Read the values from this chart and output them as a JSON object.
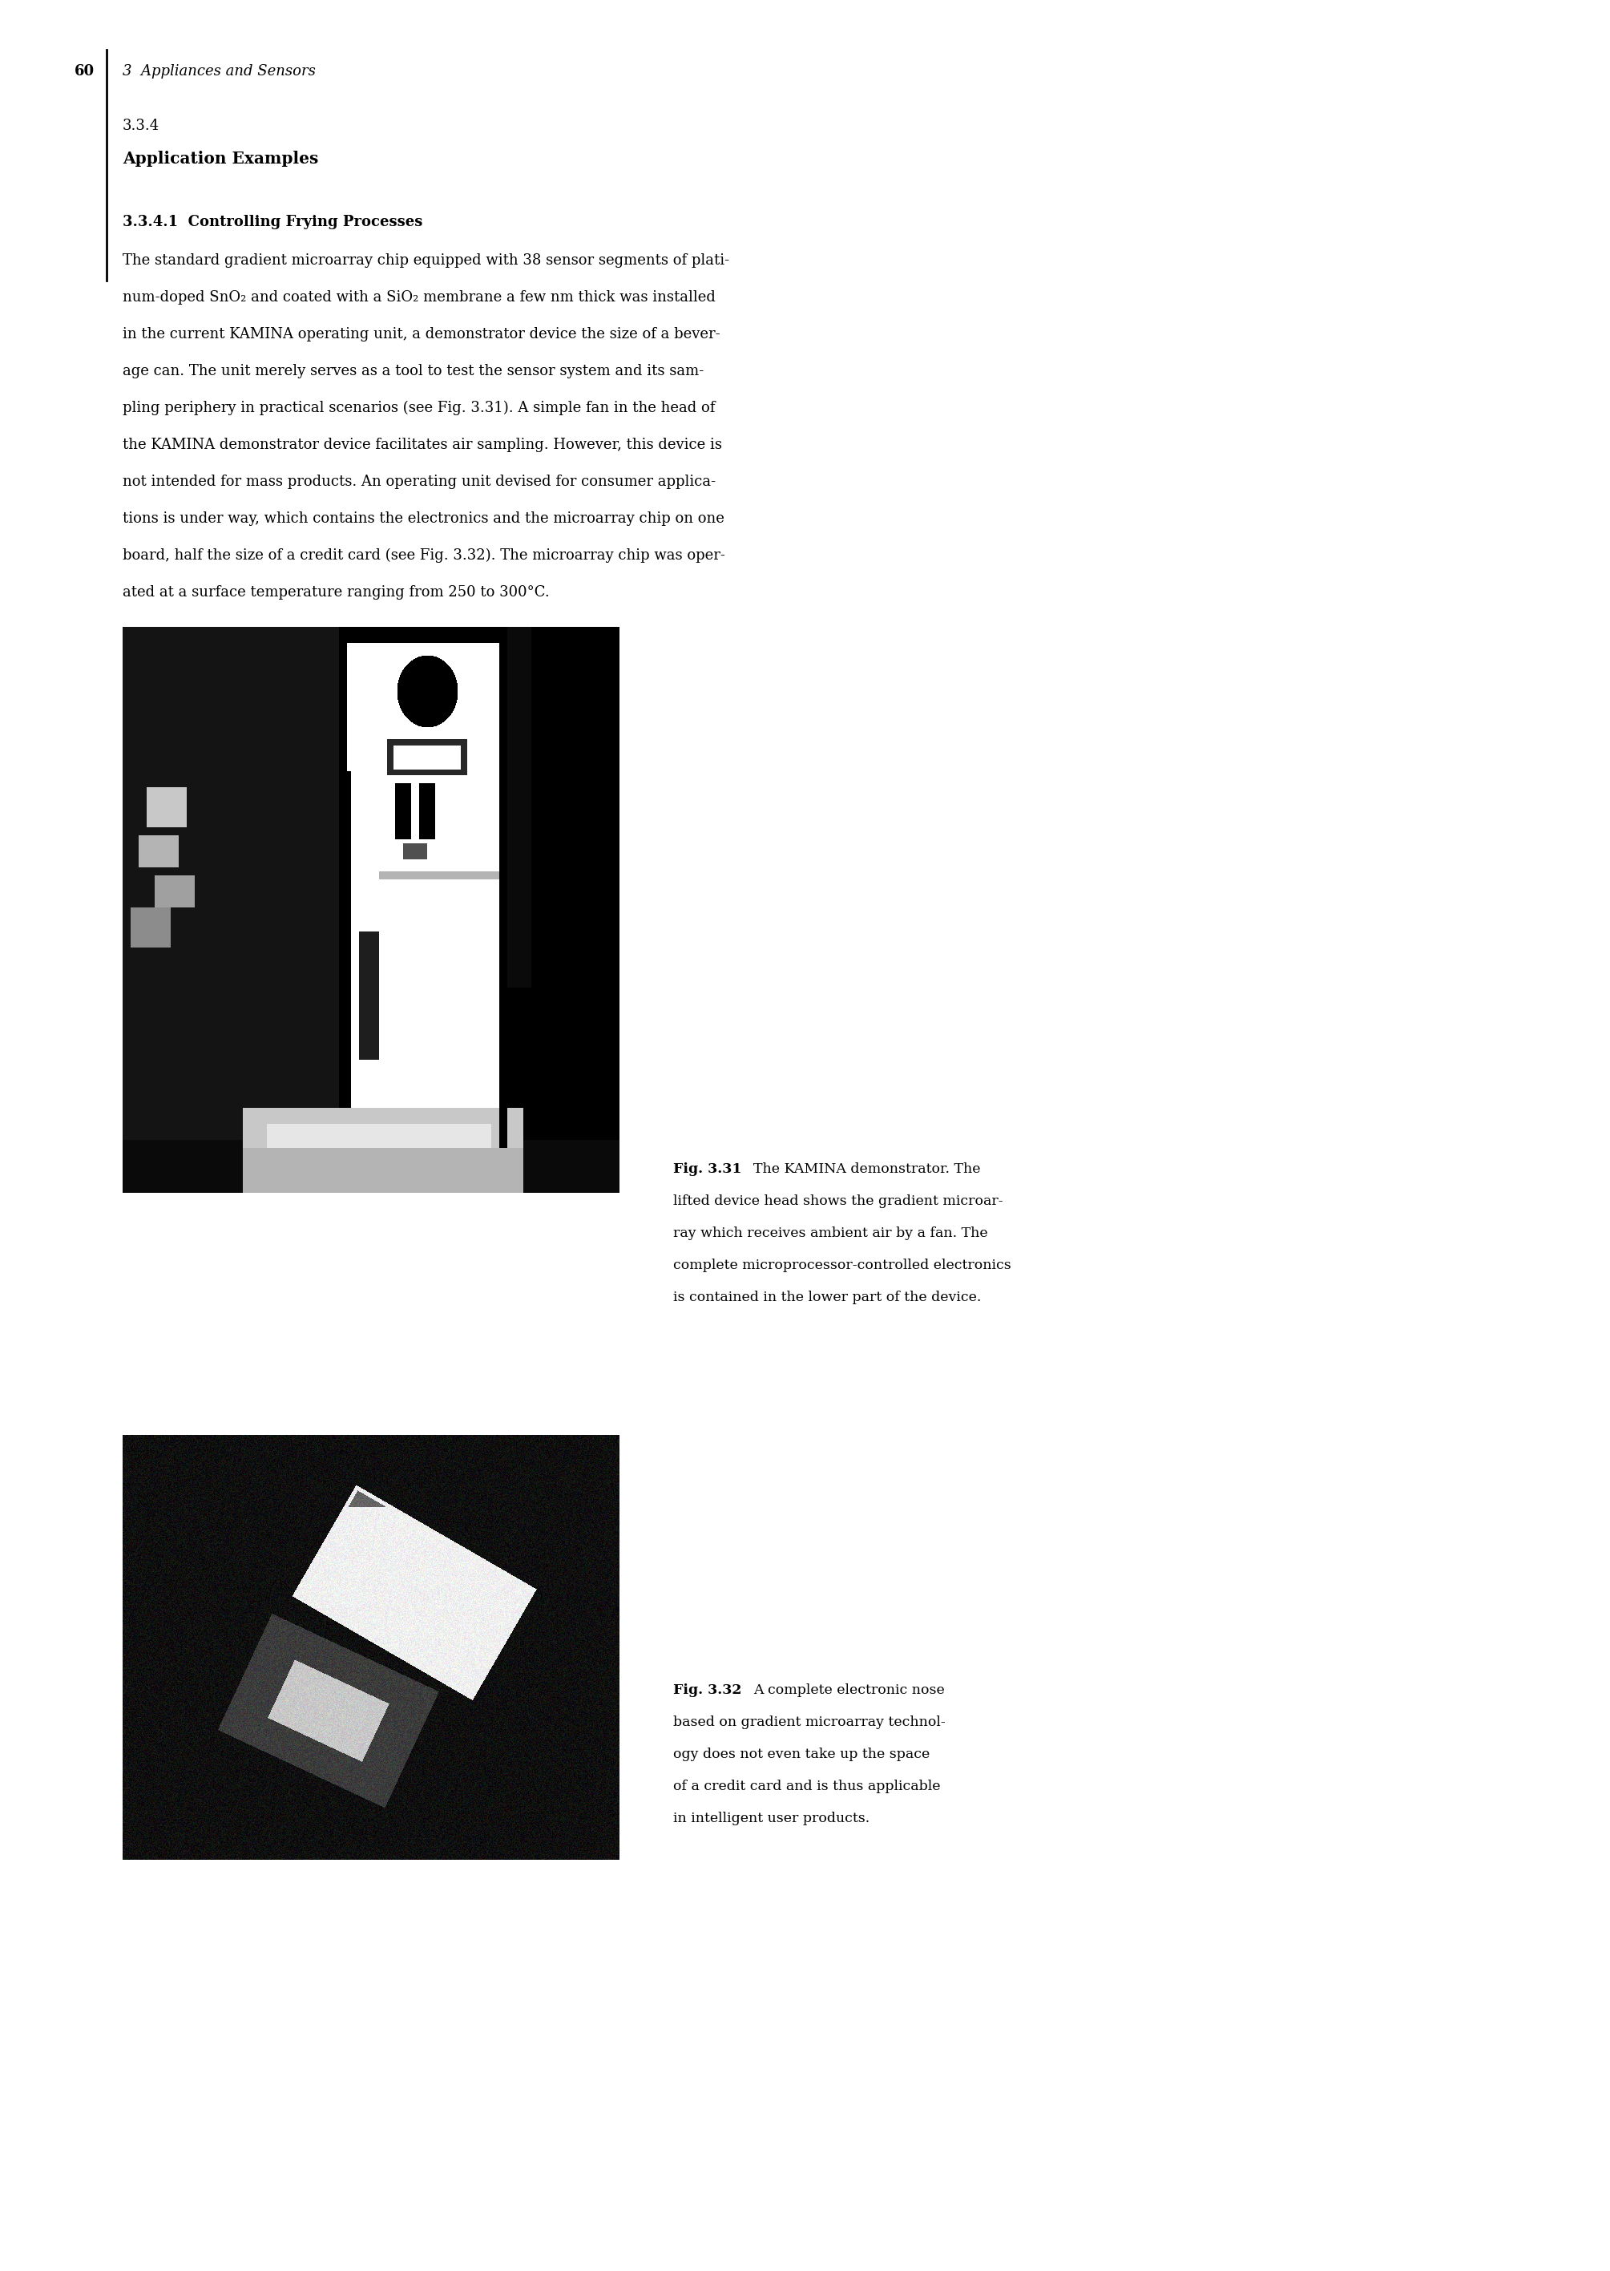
{
  "page_number": "60",
  "chapter_header": "3  Appliances and Sensors",
  "section_number": "3.3.4",
  "section_title": "Application Examples",
  "subsection_number": "3.3.4.1",
  "subsection_title": "Controlling Frying Processes",
  "body_lines": [
    "The standard gradient microarray chip equipped with 38 sensor segments of plati-",
    "num-doped SnO₂ and coated with a SiO₂ membrane a few nm thick was installed",
    "in the current KAMINA operating unit, a demonstrator device the size of a bever-",
    "age can. The unit merely serves as a tool to test the sensor system and its sam-",
    "pling periphery in practical scenarios (see Fig. 3.31). A simple fan in the head of",
    "the KAMINA demonstrator device facilitates air sampling. However, this device is",
    "not intended for mass products. An operating unit devised for consumer applica-",
    "tions is under way, which contains the electronics and the microarray chip on one",
    "board, half the size of a credit card (see Fig. 3.32). The microarray chip was oper-",
    "ated at a surface temperature ranging from 250 to 300°C."
  ],
  "fig1_label": "Fig. 3.31",
  "fig1_caption_line1": "The KAMINA demonstrator. The",
  "fig1_caption_lines": [
    "lifted device head shows the gradient microar-",
    "ray which receives ambient air by a fan. The",
    "complete microprocessor-controlled electronics",
    "is contained in the lower part of the device."
  ],
  "fig2_label": "Fig. 3.32",
  "fig2_caption_line1": "A complete electronic nose",
  "fig2_caption_lines": [
    "based on gradient microarray technol-",
    "ogy does not even take up the space",
    "of a credit card and is thus applicable",
    "in intelligent user products."
  ],
  "bg_color": "#ffffff",
  "text_color": "#000000"
}
